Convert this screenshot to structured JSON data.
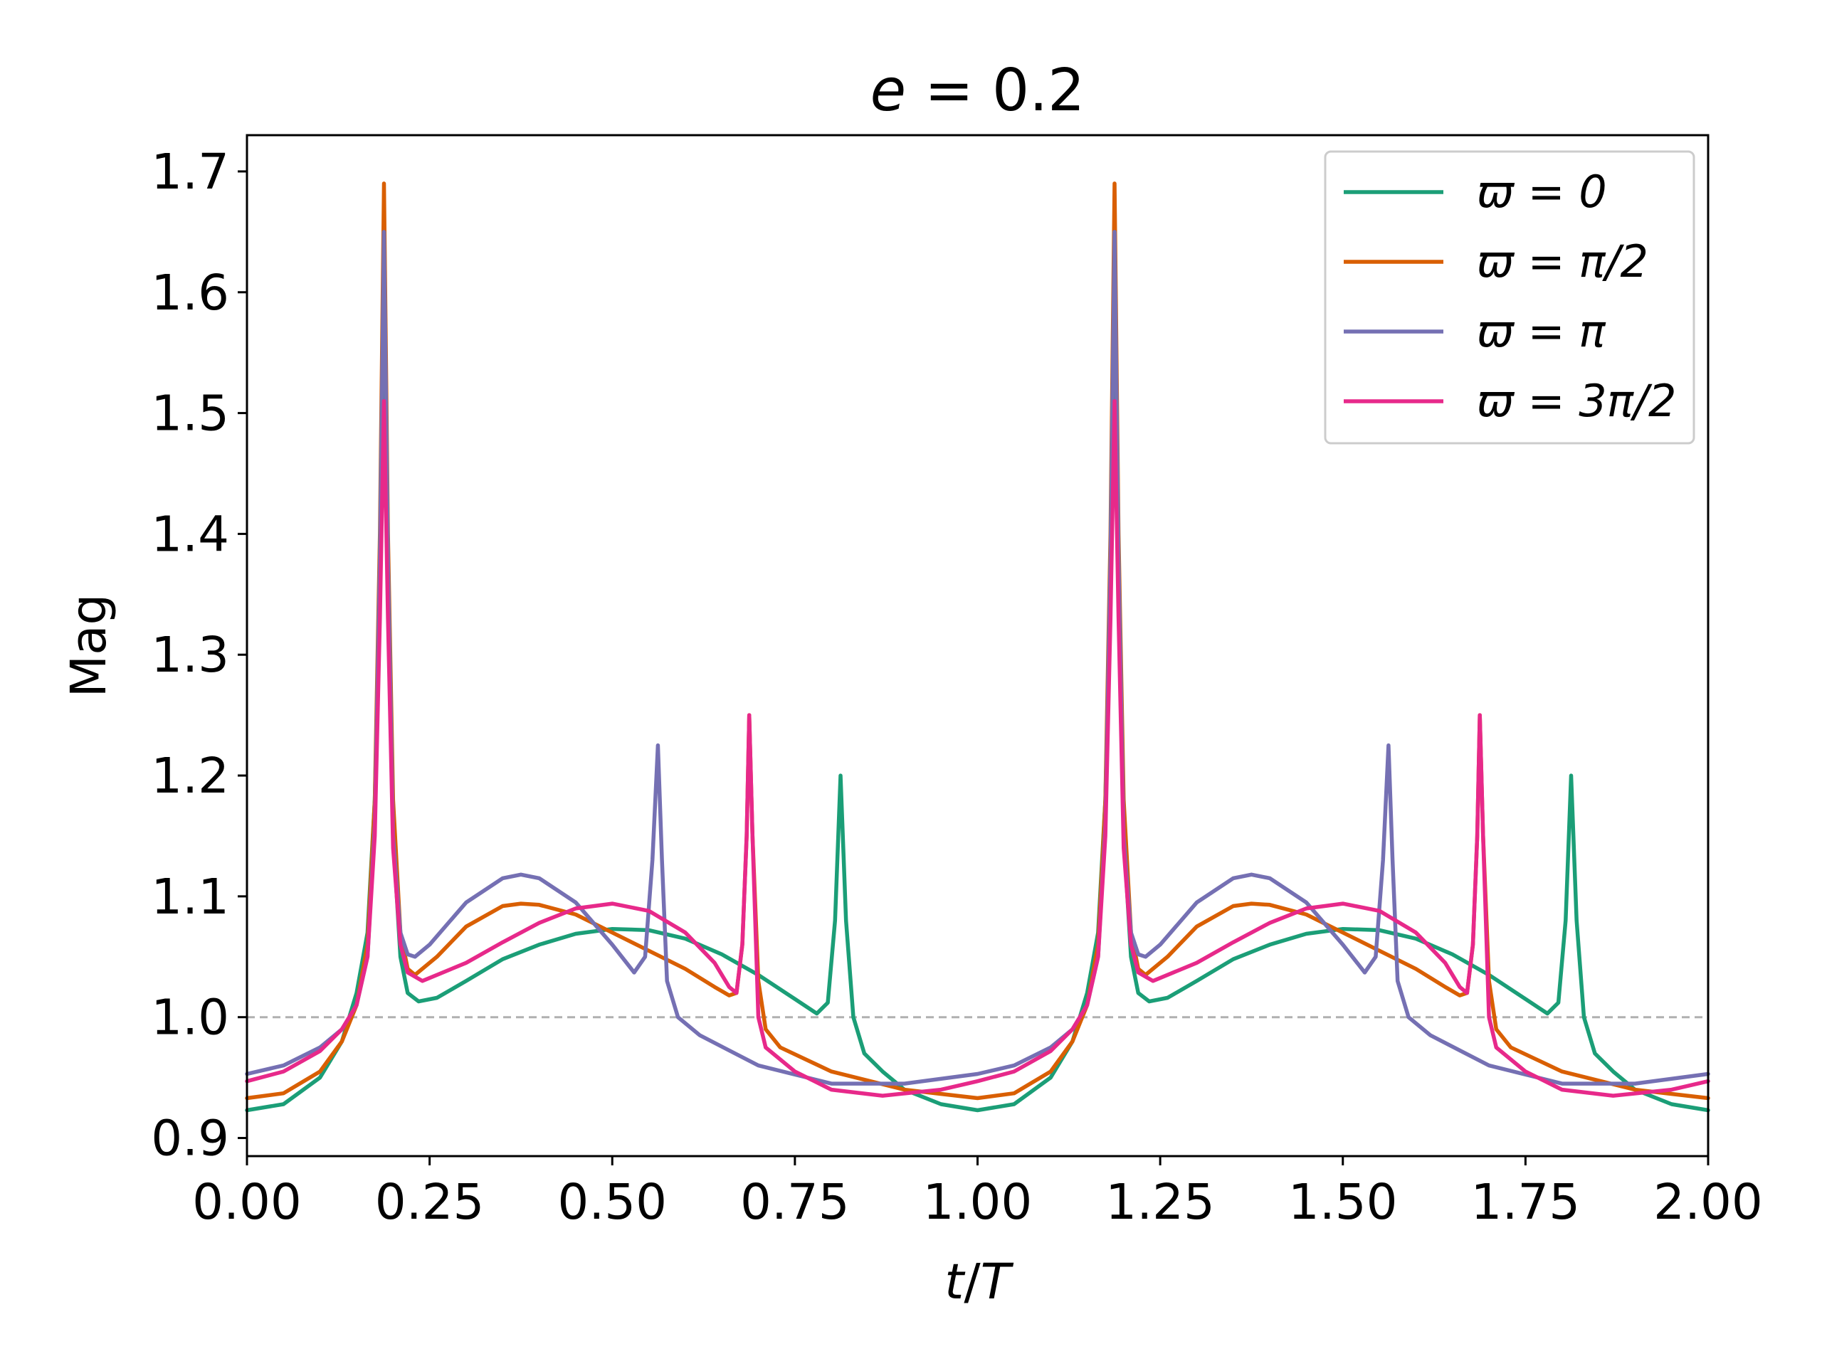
{
  "chart_data": {
    "type": "line",
    "title_var": "e",
    "title_eq": " = ",
    "title_val": "0.2",
    "xlabel_a": "t",
    "xlabel_b": "/",
    "xlabel_c": "T",
    "ylabel": "Mag",
    "xlim": [
      0.0,
      2.0
    ],
    "ylim": [
      0.885,
      1.73
    ],
    "xticks": [
      0.0,
      0.25,
      0.5,
      0.75,
      1.0,
      1.25,
      1.5,
      1.75,
      2.0
    ],
    "xtick_labels": [
      "0.00",
      "0.25",
      "0.50",
      "0.75",
      "1.00",
      "1.25",
      "1.50",
      "1.75",
      "2.00"
    ],
    "yticks": [
      0.9,
      1.0,
      1.1,
      1.2,
      1.3,
      1.4,
      1.5,
      1.6,
      1.7
    ],
    "ytick_labels": [
      "0.9",
      "1.0",
      "1.1",
      "1.2",
      "1.3",
      "1.4",
      "1.5",
      "1.6",
      "1.7"
    ],
    "reference_line": {
      "y": 1.0,
      "style": "dashed",
      "color": "#b0b0b0"
    },
    "legend_position": "top-right",
    "series": [
      {
        "name": "ϖ = 0",
        "label_sym": "ϖ",
        "label_eq": " = ",
        "label_val": "0",
        "color": "#1b9e77",
        "period": 1.0,
        "points": [
          [
            0.0,
            0.923
          ],
          [
            0.05,
            0.928
          ],
          [
            0.1,
            0.95
          ],
          [
            0.13,
            0.98
          ],
          [
            0.15,
            1.02
          ],
          [
            0.165,
            1.07
          ],
          [
            0.175,
            1.18
          ],
          [
            0.182,
            1.35
          ],
          [
            0.1875,
            1.56
          ],
          [
            0.193,
            1.35
          ],
          [
            0.2,
            1.15
          ],
          [
            0.21,
            1.05
          ],
          [
            0.22,
            1.02
          ],
          [
            0.235,
            1.013
          ],
          [
            0.26,
            1.016
          ],
          [
            0.3,
            1.03
          ],
          [
            0.35,
            1.048
          ],
          [
            0.4,
            1.06
          ],
          [
            0.45,
            1.069
          ],
          [
            0.5,
            1.073
          ],
          [
            0.55,
            1.072
          ],
          [
            0.6,
            1.065
          ],
          [
            0.65,
            1.052
          ],
          [
            0.7,
            1.035
          ],
          [
            0.75,
            1.015
          ],
          [
            0.78,
            1.003
          ],
          [
            0.795,
            1.012
          ],
          [
            0.805,
            1.08
          ],
          [
            0.8125,
            1.2
          ],
          [
            0.82,
            1.08
          ],
          [
            0.83,
            1.0
          ],
          [
            0.845,
            0.97
          ],
          [
            0.87,
            0.955
          ],
          [
            0.9,
            0.94
          ],
          [
            0.95,
            0.928
          ],
          [
            1.0,
            0.923
          ]
        ]
      },
      {
        "name": "ϖ = π/2",
        "label_sym": "ϖ",
        "label_eq": " = ",
        "label_val": "π/2",
        "color": "#d95f02",
        "period": 1.0,
        "points": [
          [
            0.0,
            0.933
          ],
          [
            0.05,
            0.937
          ],
          [
            0.1,
            0.955
          ],
          [
            0.13,
            0.98
          ],
          [
            0.15,
            1.01
          ],
          [
            0.165,
            1.06
          ],
          [
            0.175,
            1.18
          ],
          [
            0.182,
            1.4
          ],
          [
            0.1875,
            1.69
          ],
          [
            0.193,
            1.4
          ],
          [
            0.2,
            1.18
          ],
          [
            0.21,
            1.07
          ],
          [
            0.22,
            1.04
          ],
          [
            0.23,
            1.035
          ],
          [
            0.26,
            1.05
          ],
          [
            0.3,
            1.075
          ],
          [
            0.35,
            1.092
          ],
          [
            0.375,
            1.094
          ],
          [
            0.4,
            1.093
          ],
          [
            0.45,
            1.085
          ],
          [
            0.5,
            1.07
          ],
          [
            0.55,
            1.055
          ],
          [
            0.6,
            1.04
          ],
          [
            0.64,
            1.025
          ],
          [
            0.66,
            1.018
          ],
          [
            0.67,
            1.02
          ],
          [
            0.678,
            1.06
          ],
          [
            0.684,
            1.15
          ],
          [
            0.6875,
            1.25
          ],
          [
            0.692,
            1.15
          ],
          [
            0.7,
            1.03
          ],
          [
            0.71,
            0.99
          ],
          [
            0.73,
            0.975
          ],
          [
            0.8,
            0.955
          ],
          [
            0.9,
            0.94
          ],
          [
            1.0,
            0.933
          ]
        ]
      },
      {
        "name": "ϖ = π",
        "label_sym": "ϖ",
        "label_eq": " = ",
        "label_val": "π",
        "color": "#7570b3",
        "period": 1.0,
        "points": [
          [
            0.0,
            0.953
          ],
          [
            0.05,
            0.96
          ],
          [
            0.1,
            0.975
          ],
          [
            0.13,
            0.99
          ],
          [
            0.15,
            1.01
          ],
          [
            0.165,
            1.05
          ],
          [
            0.175,
            1.16
          ],
          [
            0.182,
            1.38
          ],
          [
            0.1875,
            1.65
          ],
          [
            0.193,
            1.38
          ],
          [
            0.2,
            1.15
          ],
          [
            0.21,
            1.07
          ],
          [
            0.22,
            1.052
          ],
          [
            0.23,
            1.05
          ],
          [
            0.25,
            1.06
          ],
          [
            0.3,
            1.095
          ],
          [
            0.35,
            1.115
          ],
          [
            0.375,
            1.118
          ],
          [
            0.4,
            1.115
          ],
          [
            0.45,
            1.095
          ],
          [
            0.5,
            1.06
          ],
          [
            0.53,
            1.037
          ],
          [
            0.545,
            1.05
          ],
          [
            0.555,
            1.13
          ],
          [
            0.5625,
            1.225
          ],
          [
            0.568,
            1.13
          ],
          [
            0.575,
            1.03
          ],
          [
            0.59,
            1.0
          ],
          [
            0.62,
            0.985
          ],
          [
            0.7,
            0.96
          ],
          [
            0.8,
            0.945
          ],
          [
            0.9,
            0.945
          ],
          [
            1.0,
            0.953
          ]
        ]
      },
      {
        "name": "ϖ = 3π/2",
        "label_sym": "ϖ",
        "label_eq": " = ",
        "label_val": "3π/2",
        "color": "#e7298a",
        "period": 1.0,
        "points": [
          [
            0.0,
            0.947
          ],
          [
            0.05,
            0.955
          ],
          [
            0.1,
            0.972
          ],
          [
            0.13,
            0.99
          ],
          [
            0.15,
            1.01
          ],
          [
            0.165,
            1.05
          ],
          [
            0.175,
            1.15
          ],
          [
            0.182,
            1.33
          ],
          [
            0.1875,
            1.51
          ],
          [
            0.193,
            1.33
          ],
          [
            0.2,
            1.14
          ],
          [
            0.21,
            1.06
          ],
          [
            0.22,
            1.037
          ],
          [
            0.24,
            1.03
          ],
          [
            0.3,
            1.045
          ],
          [
            0.35,
            1.062
          ],
          [
            0.4,
            1.078
          ],
          [
            0.45,
            1.09
          ],
          [
            0.5,
            1.094
          ],
          [
            0.55,
            1.088
          ],
          [
            0.6,
            1.07
          ],
          [
            0.64,
            1.045
          ],
          [
            0.66,
            1.025
          ],
          [
            0.67,
            1.02
          ],
          [
            0.678,
            1.06
          ],
          [
            0.684,
            1.15
          ],
          [
            0.6875,
            1.25
          ],
          [
            0.692,
            1.15
          ],
          [
            0.7,
            1.0
          ],
          [
            0.71,
            0.975
          ],
          [
            0.75,
            0.955
          ],
          [
            0.8,
            0.94
          ],
          [
            0.87,
            0.935
          ],
          [
            0.95,
            0.94
          ],
          [
            1.0,
            0.947
          ]
        ]
      }
    ]
  }
}
